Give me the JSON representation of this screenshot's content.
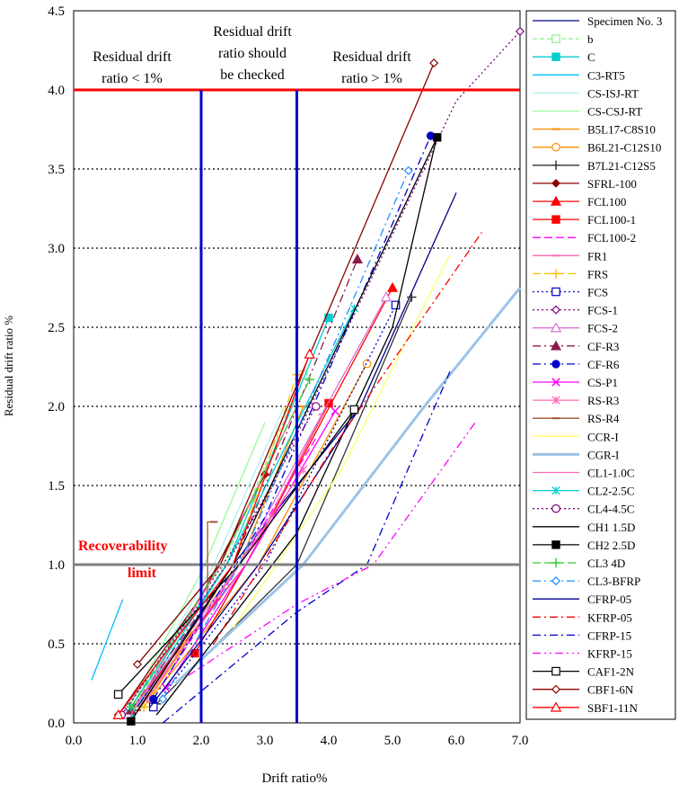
{
  "chart_data": {
    "type": "line",
    "xlabel": "Drift ratio%",
    "ylabel": "Residual drift ratio %",
    "xlim": [
      0,
      7
    ],
    "ylim": [
      0,
      4.5
    ],
    "x_ticks": [
      "0.0",
      "1.0",
      "2.0",
      "3.0",
      "4.0",
      "5.0",
      "6.0",
      "7.0"
    ],
    "y_ticks": [
      "0.0",
      "0.5",
      "1.0",
      "1.5",
      "2.0",
      "2.5",
      "3.0",
      "3.5",
      "4.0",
      "4.5"
    ],
    "grid": "horizontal dotted",
    "legend_position": "right",
    "annotations": {
      "region_left": [
        "Residual drift",
        "ratio < 1%"
      ],
      "region_mid": [
        "Residual drift",
        "ratio should",
        "be checked"
      ],
      "region_right": [
        "Residual drift",
        "ratio > 1%"
      ],
      "recoverability": [
        "Recoverability",
        "limit"
      ]
    },
    "reference_lines": {
      "vertical": [
        2.0,
        3.5
      ],
      "horizontal_red": 4.0,
      "horizontal_gray": 1.0
    },
    "series": [
      {
        "name": "Specimen No. 3",
        "color": "#00008B",
        "dash": "",
        "marker": "none",
        "points": [
          [
            1.0,
            0.1
          ],
          [
            2.5,
            1.0
          ],
          [
            4.5,
            2.0
          ],
          [
            6.0,
            3.35
          ]
        ]
      },
      {
        "name": "b",
        "color": "#90EE90",
        "dash": "5,3",
        "marker": "square-open",
        "points": [
          [
            0.9,
            0.08
          ],
          [
            2.3,
            0.95
          ],
          [
            3.6,
            2.2
          ]
        ]
      },
      {
        "name": "C",
        "color": "#00CED1",
        "dash": "",
        "marker": "square",
        "points": [
          [
            0.9,
            0.05
          ],
          [
            2.4,
            1.0
          ],
          [
            4.0,
            2.56
          ]
        ]
      },
      {
        "name": "C3-RT5",
        "color": "#00BFFF",
        "dash": "",
        "marker": "none",
        "points": [
          [
            0.28,
            0.27
          ],
          [
            0.77,
            0.78
          ]
        ]
      },
      {
        "name": "CS-ISJ-RT",
        "color": "#AFEEEE",
        "dash": "",
        "marker": "none",
        "points": [
          [
            0.9,
            0.1
          ],
          [
            2.2,
            1.0
          ],
          [
            3.3,
            2.0
          ]
        ]
      },
      {
        "name": "CS-CSJ-RT",
        "color": "#98FB98",
        "dash": "",
        "marker": "none",
        "points": [
          [
            0.8,
            0.05
          ],
          [
            2.0,
            0.95
          ],
          [
            3.0,
            1.9
          ]
        ]
      },
      {
        "name": "B5L17-C8S10",
        "color": "#FF8C00",
        "dash": "",
        "marker": "dash",
        "points": [
          [
            1.1,
            0.1
          ],
          [
            2.6,
            1.0
          ],
          [
            3.6,
            2.0
          ]
        ]
      },
      {
        "name": "B6L21-C12S10",
        "color": "#FF8C00",
        "dash": "",
        "marker": "circle-open",
        "points": [
          [
            1.2,
            0.15
          ],
          [
            2.9,
            1.0
          ],
          [
            4.6,
            2.27
          ]
        ]
      },
      {
        "name": "B7L21-C12S5",
        "color": "#333333",
        "dash": "",
        "marker": "plus",
        "points": [
          [
            1.3,
            0.12
          ],
          [
            3.5,
            1.0
          ],
          [
            5.3,
            2.69
          ]
        ]
      },
      {
        "name": "SFRL-100",
        "color": "#8B0000",
        "dash": "",
        "marker": "diamond",
        "points": [
          [
            0.7,
            0.05
          ],
          [
            2.0,
            0.8
          ],
          [
            3.0,
            1.57
          ]
        ]
      },
      {
        "name": "FCL100",
        "color": "#FF0000",
        "dash": "",
        "marker": "triangle",
        "points": [
          [
            0.9,
            0.08
          ],
          [
            2.7,
            1.0
          ],
          [
            5.0,
            2.75
          ]
        ]
      },
      {
        "name": "FCL100-1",
        "color": "#FF0000",
        "dash": "",
        "marker": "square",
        "points": [
          [
            1.9,
            0.44
          ],
          [
            2.7,
            1.0
          ],
          [
            4.0,
            2.02
          ]
        ]
      },
      {
        "name": "FCL100-2",
        "color": "#FF00FF",
        "dash": "9,4",
        "marker": "none",
        "points": [
          [
            1.4,
            0.25
          ],
          [
            2.6,
            1.0
          ],
          [
            3.8,
            1.8
          ]
        ]
      },
      {
        "name": "FR1",
        "color": "#FF69B4",
        "dash": "",
        "marker": "dash",
        "points": [
          [
            1.2,
            0.2
          ],
          [
            2.7,
            1.0
          ],
          [
            3.9,
            1.95
          ]
        ]
      },
      {
        "name": "FRS",
        "color": "#FFC000",
        "dash": "9,4",
        "marker": "plus",
        "points": [
          [
            1.1,
            0.1
          ],
          [
            2.5,
            1.0
          ],
          [
            3.5,
            2.2
          ]
        ]
      },
      {
        "name": "FCS",
        "color": "#0000CD",
        "dash": "2,3",
        "marker": "square-open",
        "points": [
          [
            1.25,
            0.1
          ],
          [
            3.0,
            1.0
          ],
          [
            5.05,
            2.64
          ]
        ]
      },
      {
        "name": "FCS-1",
        "color": "#800080",
        "dash": "2,3",
        "marker": "diamond-open",
        "points": [
          [
            0.85,
            0.1
          ],
          [
            3.0,
            1.4
          ],
          [
            6.0,
            3.93
          ],
          [
            7.0,
            4.37
          ]
        ]
      },
      {
        "name": "FCS-2",
        "color": "#DA70D6",
        "dash": "",
        "marker": "triangle-open",
        "points": [
          [
            0.85,
            0.05
          ],
          [
            2.6,
            1.0
          ],
          [
            4.9,
            2.69
          ]
        ]
      },
      {
        "name": "CF-R3",
        "color": "#8B1A4A",
        "dash": "9,4,2,4",
        "marker": "triangle",
        "points": [
          [
            0.9,
            0.08
          ],
          [
            2.5,
            1.0
          ],
          [
            4.45,
            2.93
          ]
        ]
      },
      {
        "name": "CF-R6",
        "color": "#0000CD",
        "dash": "9,4,2,4",
        "marker": "circle",
        "points": [
          [
            1.25,
            0.15
          ],
          [
            3.0,
            1.3
          ],
          [
            5.6,
            3.71
          ]
        ]
      },
      {
        "name": "CS-P1",
        "color": "#FF00FF",
        "dash": "",
        "marker": "x",
        "points": [
          [
            1.45,
            0.22
          ],
          [
            2.7,
            1.0
          ],
          [
            4.1,
            1.97
          ]
        ]
      },
      {
        "name": "RS-R3",
        "color": "#FF69B4",
        "dash": "",
        "marker": "star",
        "points": [
          [
            1.15,
            0.15
          ],
          [
            2.6,
            1.0
          ],
          [
            3.6,
            1.6
          ]
        ]
      },
      {
        "name": "RS-R4",
        "color": "#A0522D",
        "dash": "",
        "marker": "dash",
        "points": [
          [
            1.0,
            0.08
          ],
          [
            2.1,
            0.75
          ],
          [
            2.1,
            1.27
          ],
          [
            2.2,
            1.27
          ]
        ]
      },
      {
        "name": "CCR-I",
        "color": "#FFFF66",
        "dash": "",
        "marker": "none",
        "points": [
          [
            2.5,
            0.6
          ],
          [
            4.2,
            1.6
          ],
          [
            5.9,
            2.96
          ]
        ]
      },
      {
        "name": "CGR-I",
        "color": "#9CC3E6",
        "dash": "",
        "width": 3,
        "marker": "none",
        "points": [
          [
            1.6,
            0.25
          ],
          [
            3.6,
            1.0
          ],
          [
            5.5,
            2.0
          ],
          [
            7.0,
            2.75
          ]
        ]
      },
      {
        "name": "CL1-1.0C",
        "color": "#FF69B4",
        "dash": "",
        "marker": "none",
        "points": [
          [
            0.9,
            0.05
          ],
          [
            2.3,
            1.0
          ],
          [
            3.5,
            2.0
          ]
        ]
      },
      {
        "name": "CL2-2.5C",
        "color": "#00CED1",
        "dash": "",
        "marker": "x-star",
        "points": [
          [
            0.9,
            0.1
          ],
          [
            2.4,
            1.0
          ],
          [
            4.4,
            2.62
          ]
        ]
      },
      {
        "name": "CL4-4.5C",
        "color": "#800080",
        "dash": "2,3",
        "marker": "circle-open",
        "points": [
          [
            0.75,
            0.05
          ],
          [
            2.4,
            1.0
          ],
          [
            3.8,
            2.0
          ]
        ]
      },
      {
        "name": "CH1 1.5D",
        "color": "#000000",
        "dash": "",
        "marker": "none",
        "points": [
          [
            1.3,
            0.05
          ],
          [
            3.5,
            1.2
          ],
          [
            5.0,
            2.5
          ],
          [
            5.7,
            3.71
          ]
        ]
      },
      {
        "name": "CH2 2.5D",
        "color": "#000000",
        "dash": "",
        "marker": "square",
        "points": [
          [
            0.9,
            0.01
          ],
          [
            2.5,
            1.0
          ],
          [
            5.7,
            3.7
          ]
        ]
      },
      {
        "name": "CL3 4D",
        "color": "#32CD32",
        "dash": "9,4",
        "marker": "plus",
        "points": [
          [
            0.9,
            0.1
          ],
          [
            2.3,
            1.0
          ],
          [
            3.7,
            2.17
          ]
        ]
      },
      {
        "name": "CL3-BFRP",
        "color": "#1E90FF",
        "dash": "9,4,2,4",
        "marker": "diamond-open",
        "points": [
          [
            1.4,
            0.15
          ],
          [
            2.6,
            1.0
          ],
          [
            5.25,
            3.49
          ]
        ]
      },
      {
        "name": "CFRP-05",
        "color": "#00008B",
        "dash": "",
        "marker": "none",
        "points": [
          [
            1.2,
            0.1
          ],
          [
            2.9,
            1.0
          ],
          [
            4.5,
            2.0
          ]
        ]
      },
      {
        "name": "KFRP-05",
        "color": "#FF0000",
        "dash": "9,4,2,4",
        "marker": "none",
        "points": [
          [
            2.2,
            0.5
          ],
          [
            4.0,
            1.7
          ],
          [
            6.4,
            3.1
          ]
        ]
      },
      {
        "name": "CFRP-15",
        "color": "#0000CD",
        "dash": "9,4,2,4",
        "marker": "none",
        "points": [
          [
            1.4,
            0.0
          ],
          [
            3.5,
            0.7
          ],
          [
            4.6,
            1.0
          ],
          [
            5.9,
            2.22
          ]
        ]
      },
      {
        "name": "KFRP-15",
        "color": "#FF00FF",
        "dash": "9,4,2,4,2,4",
        "marker": "none",
        "points": [
          [
            1.8,
            0.3
          ],
          [
            3.5,
            0.75
          ],
          [
            4.7,
            1.0
          ],
          [
            6.3,
            1.9
          ]
        ]
      },
      {
        "name": "CAF1-2N",
        "color": "#000000",
        "dash": "",
        "marker": "square-open",
        "points": [
          [
            0.7,
            0.18
          ],
          [
            2.6,
            1.0
          ],
          [
            4.4,
            1.98
          ]
        ]
      },
      {
        "name": "CBF1-6N",
        "color": "#8B0000",
        "dash": "",
        "marker": "diamond-open",
        "points": [
          [
            1.0,
            0.37
          ],
          [
            2.3,
            1.0
          ],
          [
            5.65,
            4.17
          ]
        ]
      },
      {
        "name": "SBF1-11N",
        "color": "#FF0000",
        "dash": "",
        "marker": "triangle-open",
        "points": [
          [
            0.7,
            0.05
          ],
          [
            2.5,
            1.0
          ],
          [
            3.7,
            2.33
          ]
        ]
      }
    ]
  }
}
